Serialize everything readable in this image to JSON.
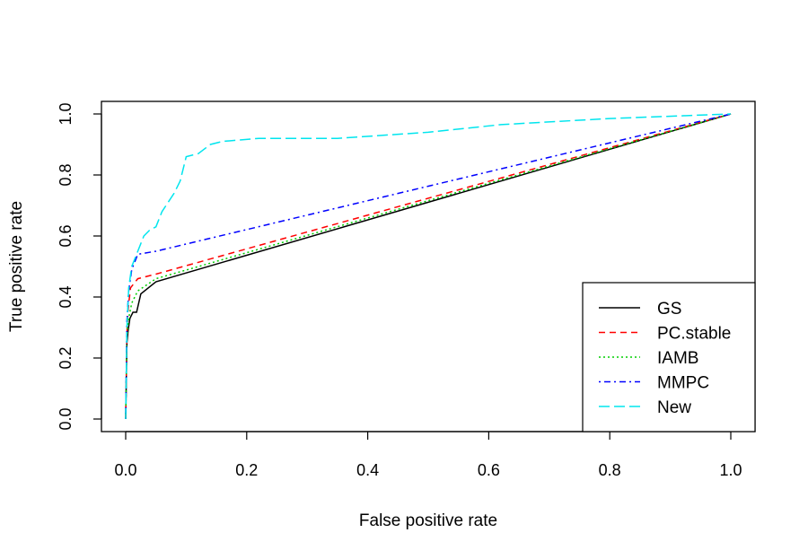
{
  "chart_data": {
    "type": "line",
    "title": "",
    "xlabel": "False positive rate",
    "ylabel": "True positive rate",
    "xlim": [
      0,
      1
    ],
    "ylim": [
      0,
      1
    ],
    "xticks": [
      "0.0",
      "0.2",
      "0.4",
      "0.6",
      "0.8",
      "1.0"
    ],
    "yticks": [
      "0.0",
      "0.2",
      "0.4",
      "0.6",
      "0.8",
      "1.0"
    ],
    "grid": false,
    "legend_position": "bottom-right",
    "series": [
      {
        "name": "GS",
        "color": "#000000",
        "dash": "solid",
        "points": [
          [
            0,
            0
          ],
          [
            0.002,
            0.25
          ],
          [
            0.004,
            0.29
          ],
          [
            0.007,
            0.33
          ],
          [
            0.012,
            0.35
          ],
          [
            0.018,
            0.35
          ],
          [
            0.025,
            0.41
          ],
          [
            0.05,
            0.45
          ],
          [
            1.0,
            1.0
          ]
        ]
      },
      {
        "name": "PC.stable",
        "color": "#ff0000",
        "dash": "dashed",
        "points": [
          [
            0,
            0
          ],
          [
            0.002,
            0.28
          ],
          [
            0.004,
            0.36
          ],
          [
            0.008,
            0.43
          ],
          [
            0.02,
            0.46
          ],
          [
            0.05,
            0.475
          ],
          [
            1.0,
            1.0
          ]
        ]
      },
      {
        "name": "IAMB",
        "color": "#00cd00",
        "dash": "dotted",
        "points": [
          [
            0,
            0
          ],
          [
            0.002,
            0.27
          ],
          [
            0.005,
            0.33
          ],
          [
            0.01,
            0.38
          ],
          [
            0.02,
            0.42
          ],
          [
            0.05,
            0.46
          ],
          [
            1.0,
            1.0
          ]
        ]
      },
      {
        "name": "MMPC",
        "color": "#0000ff",
        "dash": "dotdash",
        "points": [
          [
            0,
            0
          ],
          [
            0.002,
            0.32
          ],
          [
            0.005,
            0.42
          ],
          [
            0.01,
            0.49
          ],
          [
            0.02,
            0.54
          ],
          [
            0.05,
            0.55
          ],
          [
            1.0,
            1.0
          ]
        ]
      },
      {
        "name": "New",
        "color": "#00e5ee",
        "dash": "longdash",
        "points": [
          [
            0,
            0
          ],
          [
            0.002,
            0.3
          ],
          [
            0.005,
            0.43
          ],
          [
            0.01,
            0.5
          ],
          [
            0.02,
            0.55
          ],
          [
            0.03,
            0.6
          ],
          [
            0.04,
            0.62
          ],
          [
            0.05,
            0.63
          ],
          [
            0.06,
            0.68
          ],
          [
            0.07,
            0.71
          ],
          [
            0.08,
            0.74
          ],
          [
            0.09,
            0.78
          ],
          [
            0.1,
            0.86
          ],
          [
            0.12,
            0.87
          ],
          [
            0.14,
            0.9
          ],
          [
            0.16,
            0.91
          ],
          [
            0.22,
            0.92
          ],
          [
            0.35,
            0.92
          ],
          [
            0.5,
            0.94
          ],
          [
            0.62,
            0.965
          ],
          [
            0.8,
            0.985
          ],
          [
            1.0,
            1.0
          ]
        ]
      }
    ]
  }
}
